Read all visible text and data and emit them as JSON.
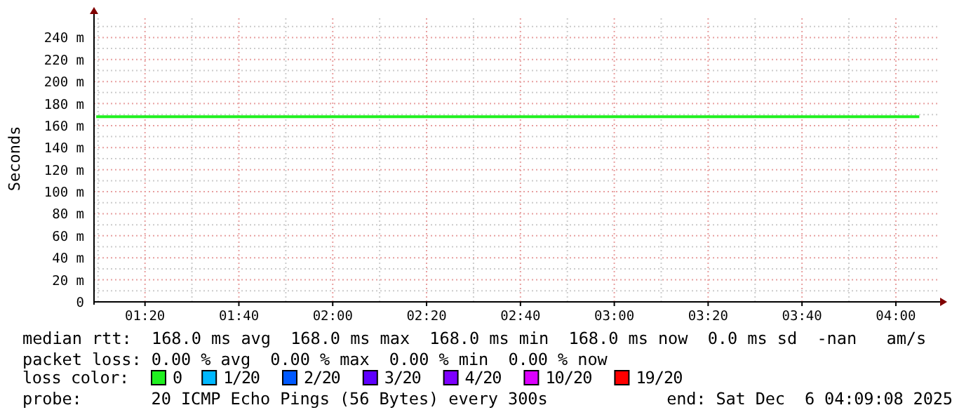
{
  "chart_data": {
    "type": "line",
    "ylabel": "Seconds",
    "legend_title": "loss color:",
    "legend": "bottom",
    "grid": true,
    "marker": "none",
    "line_style": "solid",
    "x": [
      1.16,
      4.0833
    ],
    "xlim": [
      1.1522,
      4.1522
    ],
    "xticks": [
      {
        "value": 1.3333,
        "label": "01:20"
      },
      {
        "value": 1.6667,
        "label": "01:40"
      },
      {
        "value": 2,
        "label": "02:00"
      },
      {
        "value": 2.3333,
        "label": "02:20"
      },
      {
        "value": 2.6667,
        "label": "02:40"
      },
      {
        "value": 3,
        "label": "03:00"
      },
      {
        "value": 3.3333,
        "label": "03:20"
      },
      {
        "value": 3.6667,
        "label": "03:40"
      },
      {
        "value": 4,
        "label": "04:00"
      }
    ],
    "ylim": [
      0,
      260
    ],
    "yticks": [
      0,
      {
        "value": 20,
        "label": "20 m"
      },
      {
        "value": 40,
        "label": "40 m"
      },
      {
        "value": 60,
        "label": "60 m"
      },
      {
        "value": 80,
        "label": "80 m"
      },
      {
        "value": 100,
        "label": "100 m"
      },
      {
        "value": 120,
        "label": "120 m"
      },
      {
        "value": 140,
        "label": "140 m"
      },
      {
        "value": 160,
        "label": "160 m"
      },
      {
        "value": 180,
        "label": "180 m"
      },
      {
        "value": 200,
        "label": "200 m"
      },
      {
        "value": 220,
        "label": "220 m"
      },
      {
        "value": 240,
        "label": "240 m"
      }
    ],
    "series": [
      {
        "name": "0",
        "color": "#20f020",
        "values": [
          168,
          168
        ]
      },
      {
        "name": "1/20",
        "color": "#00b8ff",
        "values": [
          null,
          null
        ]
      },
      {
        "name": "2/20",
        "color": "#0059ff",
        "values": [
          null,
          null
        ]
      },
      {
        "name": "3/20",
        "color": "#5e00ff",
        "values": [
          null,
          null
        ]
      },
      {
        "name": "4/20",
        "color": "#7e00ff",
        "values": [
          null,
          null
        ]
      },
      {
        "name": "10/20",
        "color": "#dd00ff",
        "values": [
          null,
          null
        ]
      },
      {
        "name": "19/20",
        "color": "#ff0000",
        "values": [
          null,
          null
        ]
      }
    ],
    "annotations": [
      "median rtt:  168.0 ms avg  168.0 ms max  168.0 ms min  168.0 ms now  0.0 ms sd  -nan   am/s",
      "packet loss: 0.00 % avg  0.00 % max  0.00 % min  0.00 % now",
      "probe:       20 ICMP Echo Pings (56 Bytes) every 300s",
      "end: Sat Dec  6 04:09:08 2025"
    ]
  }
}
